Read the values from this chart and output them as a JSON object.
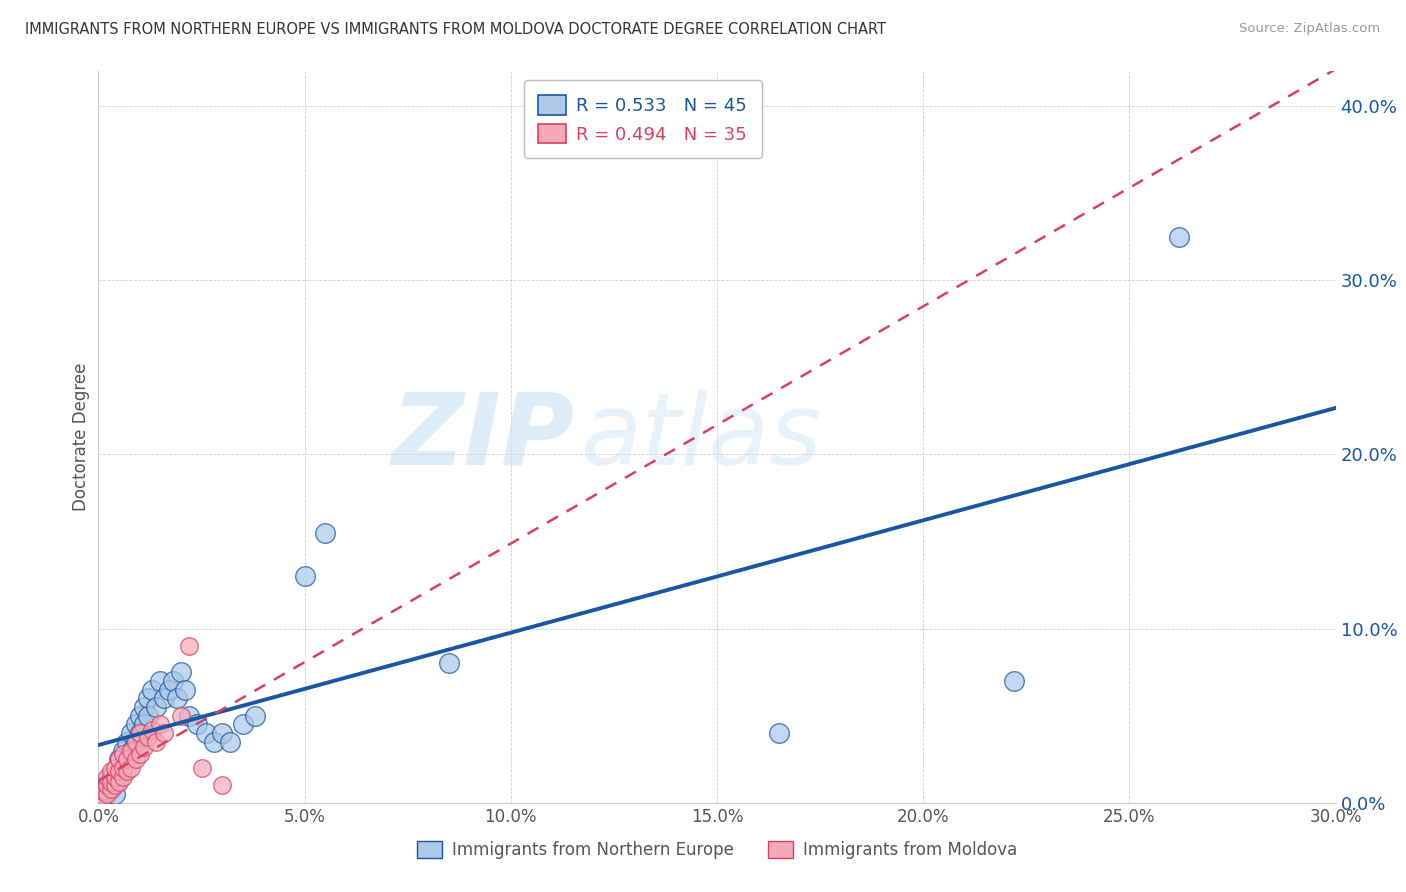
{
  "title": "IMMIGRANTS FROM NORTHERN EUROPE VS IMMIGRANTS FROM MOLDOVA DOCTORATE DEGREE CORRELATION CHART",
  "source": "Source: ZipAtlas.com",
  "xlabel_blue": "Immigrants from Northern Europe",
  "xlabel_pink": "Immigrants from Moldova",
  "ylabel": "Doctorate Degree",
  "xlim": [
    0.0,
    0.3
  ],
  "ylim": [
    0.0,
    0.42
  ],
  "x_ticks": [
    0.0,
    0.05,
    0.1,
    0.15,
    0.2,
    0.25,
    0.3
  ],
  "y_ticks": [
    0.0,
    0.1,
    0.2,
    0.3,
    0.4
  ],
  "blue_R": 0.533,
  "blue_N": 45,
  "pink_R": 0.494,
  "pink_N": 35,
  "blue_color": "#adc8e8",
  "pink_color": "#f4aabb",
  "blue_line_color": "#1a56a0",
  "pink_line_color": "#d94060",
  "watermark_zip": "ZIP",
  "watermark_atlas": "atlas",
  "blue_points": [
    [
      0.001,
      0.005
    ],
    [
      0.002,
      0.01
    ],
    [
      0.003,
      0.008
    ],
    [
      0.003,
      0.015
    ],
    [
      0.004,
      0.005
    ],
    [
      0.004,
      0.012
    ],
    [
      0.005,
      0.018
    ],
    [
      0.005,
      0.025
    ],
    [
      0.006,
      0.02
    ],
    [
      0.006,
      0.03
    ],
    [
      0.007,
      0.035
    ],
    [
      0.007,
      0.025
    ],
    [
      0.008,
      0.04
    ],
    [
      0.008,
      0.03
    ],
    [
      0.009,
      0.045
    ],
    [
      0.009,
      0.035
    ],
    [
      0.01,
      0.05
    ],
    [
      0.01,
      0.04
    ],
    [
      0.011,
      0.055
    ],
    [
      0.011,
      0.045
    ],
    [
      0.012,
      0.06
    ],
    [
      0.012,
      0.05
    ],
    [
      0.013,
      0.065
    ],
    [
      0.014,
      0.055
    ],
    [
      0.015,
      0.07
    ],
    [
      0.016,
      0.06
    ],
    [
      0.017,
      0.065
    ],
    [
      0.018,
      0.07
    ],
    [
      0.019,
      0.06
    ],
    [
      0.02,
      0.075
    ],
    [
      0.021,
      0.065
    ],
    [
      0.022,
      0.05
    ],
    [
      0.024,
      0.045
    ],
    [
      0.026,
      0.04
    ],
    [
      0.028,
      0.035
    ],
    [
      0.03,
      0.04
    ],
    [
      0.032,
      0.035
    ],
    [
      0.035,
      0.045
    ],
    [
      0.038,
      0.05
    ],
    [
      0.05,
      0.13
    ],
    [
      0.055,
      0.155
    ],
    [
      0.085,
      0.08
    ],
    [
      0.165,
      0.04
    ],
    [
      0.222,
      0.07
    ],
    [
      0.262,
      0.325
    ]
  ],
  "pink_points": [
    [
      0.001,
      0.003
    ],
    [
      0.001,
      0.007
    ],
    [
      0.002,
      0.005
    ],
    [
      0.002,
      0.01
    ],
    [
      0.002,
      0.015
    ],
    [
      0.003,
      0.008
    ],
    [
      0.003,
      0.012
    ],
    [
      0.003,
      0.018
    ],
    [
      0.004,
      0.01
    ],
    [
      0.004,
      0.015
    ],
    [
      0.004,
      0.02
    ],
    [
      0.005,
      0.012
    ],
    [
      0.005,
      0.018
    ],
    [
      0.005,
      0.025
    ],
    [
      0.006,
      0.015
    ],
    [
      0.006,
      0.02
    ],
    [
      0.006,
      0.028
    ],
    [
      0.007,
      0.018
    ],
    [
      0.007,
      0.025
    ],
    [
      0.008,
      0.02
    ],
    [
      0.008,
      0.03
    ],
    [
      0.009,
      0.025
    ],
    [
      0.009,
      0.035
    ],
    [
      0.01,
      0.028
    ],
    [
      0.01,
      0.04
    ],
    [
      0.011,
      0.032
    ],
    [
      0.012,
      0.038
    ],
    [
      0.013,
      0.042
    ],
    [
      0.014,
      0.035
    ],
    [
      0.015,
      0.045
    ],
    [
      0.016,
      0.04
    ],
    [
      0.02,
      0.05
    ],
    [
      0.022,
      0.09
    ],
    [
      0.025,
      0.02
    ],
    [
      0.03,
      0.01
    ]
  ],
  "blue_line": [
    0.0,
    0.3,
    0.005,
    0.185
  ],
  "pink_line": [
    0.0,
    0.22,
    0.003,
    0.16
  ]
}
